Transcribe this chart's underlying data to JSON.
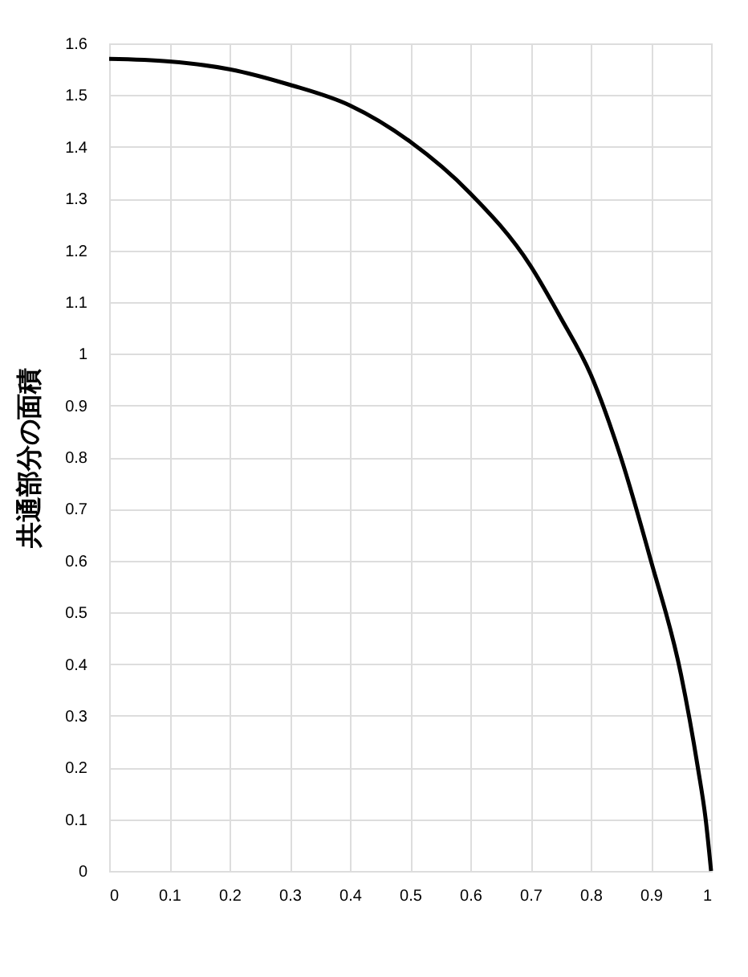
{
  "chart_data": {
    "type": "line",
    "ylabel": "共通部分の面積",
    "x": [
      0,
      0.1,
      0.2,
      0.3,
      0.4,
      0.5,
      0.6,
      0.7,
      0.75,
      0.8,
      0.85,
      0.9,
      0.95,
      0.978,
      0.991,
      1
    ],
    "series": [
      {
        "color": "#000000",
        "values": [
          1.57,
          1.565,
          1.55,
          1.52,
          1.48,
          1.41,
          1.31,
          1.17,
          1.07,
          0.96,
          0.8,
          0.6,
          0.38,
          0.2,
          0.1,
          0
        ]
      }
    ],
    "xlim": [
      0,
      1
    ],
    "xticks": [
      0,
      0.1,
      0.2,
      0.3,
      0.4,
      0.5,
      0.6,
      0.7,
      0.8,
      0.9,
      1
    ],
    "ylim": [
      0,
      1.6
    ],
    "yticks": [
      0,
      0.1,
      0.2,
      0.3,
      0.4,
      0.5,
      0.6,
      0.7,
      0.8,
      0.9,
      1,
      1.1,
      1.2,
      1.3,
      1.4,
      1.5,
      1.6
    ],
    "grid": true,
    "marker": "none",
    "line_style": "solid"
  }
}
